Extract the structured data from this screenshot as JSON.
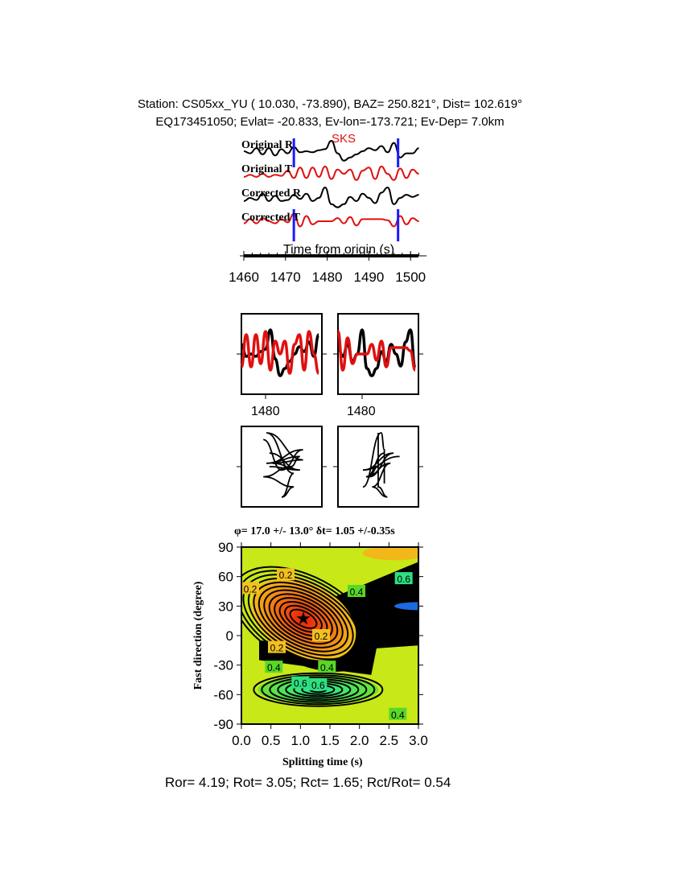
{
  "header": {
    "line1": "Station: CS05xx_YU (  10.030,  -73.890), BAZ=  250.821°, Dist=  102.619°",
    "line2": "EQ173451050; Evlat= -20.833, Ev-lon=-173.721; Ev-Dep=  7.0km"
  },
  "colors": {
    "trace_r": "#000000",
    "trace_t": "#e01010",
    "window_marker": "#1a1aff",
    "phase_label": "#e01010"
  },
  "chart_data": [
    {
      "type": "line",
      "xlabel": "Time from origin (s)",
      "xlim": [
        1459,
        1503
      ],
      "xticks": [
        1460,
        1470,
        1480,
        1490,
        1500
      ],
      "phase_label": "SKS",
      "window": [
        1472,
        1497
      ],
      "x": [
        1460,
        1461.5,
        1463,
        1464.5,
        1466,
        1467.5,
        1469,
        1470.5,
        1472,
        1473.5,
        1475,
        1476.5,
        1478,
        1479.5,
        1481,
        1482.5,
        1484,
        1485.5,
        1487,
        1488.5,
        1490,
        1491.5,
        1493,
        1494.5,
        1496,
        1497.5,
        1499,
        1500.5,
        1502
      ],
      "series": [
        {
          "name": "Original R",
          "values": [
            0,
            -0.2,
            0.3,
            -0.3,
            0.3,
            -0.4,
            0.2,
            -0.2,
            0.4,
            -0.1,
            0,
            -0.1,
            0.1,
            0.2,
            1.0,
            -0.2,
            -0.9,
            -0.6,
            -0.3,
            0,
            0.3,
            0.1,
            0.5,
            -0.1,
            0.8,
            -0.6,
            -0.2,
            -0.2,
            0.3
          ]
        },
        {
          "name": "Original T",
          "values": [
            -0.3,
            -0.1,
            -0.3,
            0,
            -0.3,
            -0.1,
            -0.2,
            0.3,
            -0.4,
            0.6,
            -0.4,
            0.6,
            -0.3,
            0.7,
            -0.5,
            0.4,
            0,
            0.4,
            -0.6,
            0.3,
            0.6,
            -0.5,
            0.7,
            0,
            -0.6,
            0.5,
            -0.4,
            0.4,
            0
          ]
        },
        {
          "name": "Corrected R",
          "values": [
            -0.3,
            0,
            -0.2,
            0.4,
            -0.3,
            0.2,
            -0.3,
            -0.2,
            0.3,
            -0.1,
            0.4,
            -0.3,
            0,
            1.0,
            -0.6,
            -0.9,
            -0.6,
            0.1,
            -0.3,
            0.4,
            0,
            -0.5,
            0.5,
            1.0,
            -0.6,
            0,
            0.3,
            0.1,
            0.3
          ]
        },
        {
          "name": "Corrected T",
          "values": [
            -0.2,
            0.2,
            -0.2,
            0.3,
            0,
            -0.2,
            0.2,
            -0.1,
            0.7,
            -0.5,
            0.5,
            -0.3,
            0,
            0,
            0,
            0.3,
            -0.2,
            0.4,
            -0.4,
            0.2,
            0.2,
            0.2,
            0.2,
            0.1,
            -0.5,
            0.5,
            -0.3,
            0.3,
            0
          ]
        }
      ]
    },
    {
      "type": "line",
      "panel": "waveform comparison",
      "xtick_label_left": "1480",
      "xtick_label_right": "1480"
    },
    {
      "type": "heatmap",
      "title": "φ= 17.0 +/- 13.0° δt= 1.05 +/-0.35s",
      "xlabel": "Splitting time (s)",
      "ylabel": "Fast direction (degree)",
      "xlim": [
        0,
        3
      ],
      "ylim": [
        -90,
        90
      ],
      "xticks": [
        "0.0",
        "0.5",
        "1.0",
        "1.5",
        "2.0",
        "2.5",
        "3.0"
      ],
      "yticks": [
        "90",
        "60",
        "30",
        "0",
        "-30",
        "-60",
        "-90"
      ],
      "best_fit": {
        "fast_direction": 17.0,
        "splitting_time": 1.05
      },
      "contour_labels": [
        {
          "text": "0.2",
          "x": 0.75,
          "y": 62
        },
        {
          "text": "0.2",
          "x": 0.15,
          "y": 48
        },
        {
          "text": "0.4",
          "x": 1.95,
          "y": 45
        },
        {
          "text": "0.6",
          "x": 2.75,
          "y": 58
        },
        {
          "text": "0.2",
          "x": 1.35,
          "y": 0
        },
        {
          "text": "0.2",
          "x": 0.6,
          "y": -12
        },
        {
          "text": "0.4",
          "x": 0.55,
          "y": -32
        },
        {
          "text": "0.4",
          "x": 1.45,
          "y": -32
        },
        {
          "text": "0.6",
          "x": 1.0,
          "y": -48
        },
        {
          "text": "0.6",
          "x": 1.3,
          "y": -50
        },
        {
          "text": "0.4",
          "x": 2.65,
          "y": -80
        }
      ]
    }
  ],
  "footer": "Ror= 4.19; Rot= 3.05; Rct= 1.65; Rct/Rot= 0.54"
}
